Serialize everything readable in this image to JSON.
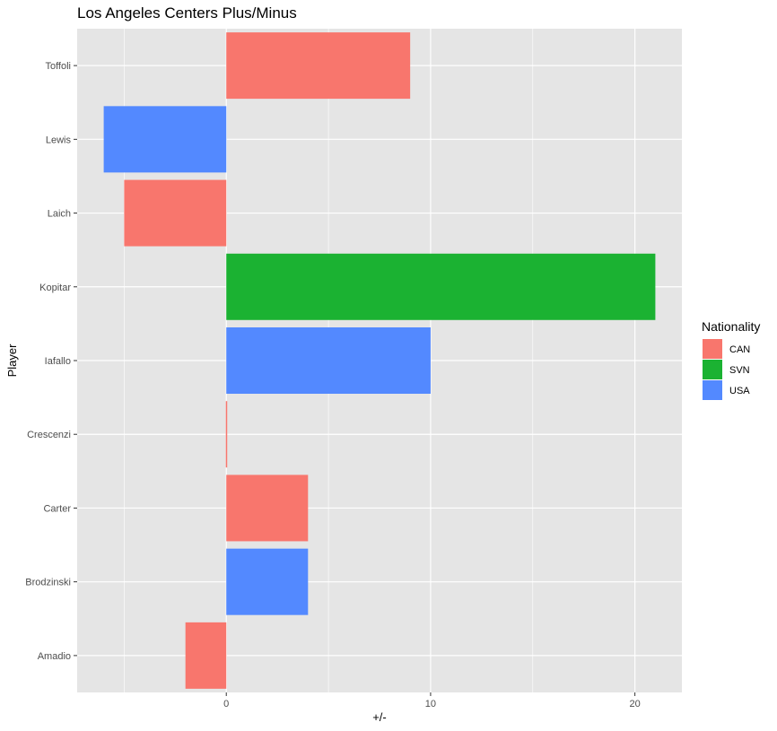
{
  "chart_data": {
    "type": "bar",
    "orientation": "horizontal",
    "title": "Los Angeles Centers Plus/Minus",
    "xlabel": "+/-",
    "ylabel": "Player",
    "categories": [
      "Toffoli",
      "Lewis",
      "Laich",
      "Kopitar",
      "Iafallo",
      "Crescenzi",
      "Carter",
      "Brodzinski",
      "Amadio"
    ],
    "values": [
      9,
      -6,
      -5,
      21,
      10,
      0,
      4,
      4,
      -2
    ],
    "groups": [
      "CAN",
      "USA",
      "CAN",
      "SVN",
      "USA",
      "CAN",
      "CAN",
      "USA",
      "CAN"
    ],
    "xlim": [
      -7.3,
      22.3
    ],
    "xticks": [
      0,
      10,
      20
    ],
    "grid": true,
    "legend": {
      "title": "Nationality",
      "position": "right",
      "entries": [
        {
          "label": "CAN",
          "color": "#F8766D"
        },
        {
          "label": "SVN",
          "color": "#1BB232"
        },
        {
          "label": "USA",
          "color": "#5389FF"
        }
      ]
    },
    "colors": {
      "CAN": "#F8766D",
      "SVN": "#1BB232",
      "USA": "#5389FF"
    },
    "panel_background": "#E5E5E5",
    "grid_color": "#FFFFFF"
  }
}
